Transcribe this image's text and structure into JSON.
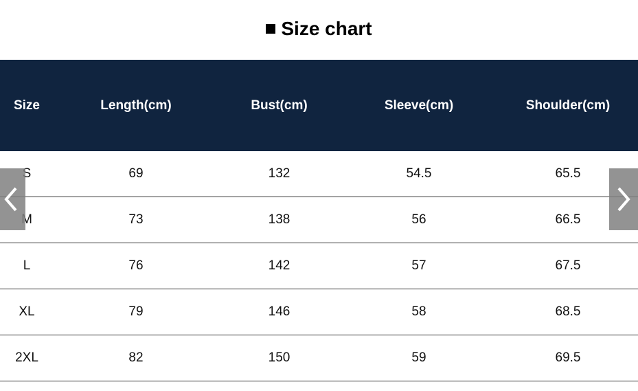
{
  "title": "Size chart",
  "table": {
    "headers": [
      "Size",
      "Length(cm)",
      "Bust(cm)",
      "Sleeve(cm)",
      "Shoulder(cm)"
    ],
    "rows": [
      [
        "S",
        "69",
        "132",
        "54.5",
        "65.5"
      ],
      [
        "M",
        "73",
        "138",
        "56",
        "66.5"
      ],
      [
        "L",
        "76",
        "142",
        "57",
        "67.5"
      ],
      [
        "XL",
        "79",
        "146",
        "58",
        "68.5"
      ],
      [
        "2XL",
        "82",
        "150",
        "59",
        "69.5"
      ]
    ]
  },
  "colors": {
    "header_bg": "#10243f",
    "header_text": "#ffffff",
    "nav_button_bg": "#808080"
  },
  "icons": {
    "prev": "chevron-left-icon",
    "next": "chevron-right-icon"
  }
}
